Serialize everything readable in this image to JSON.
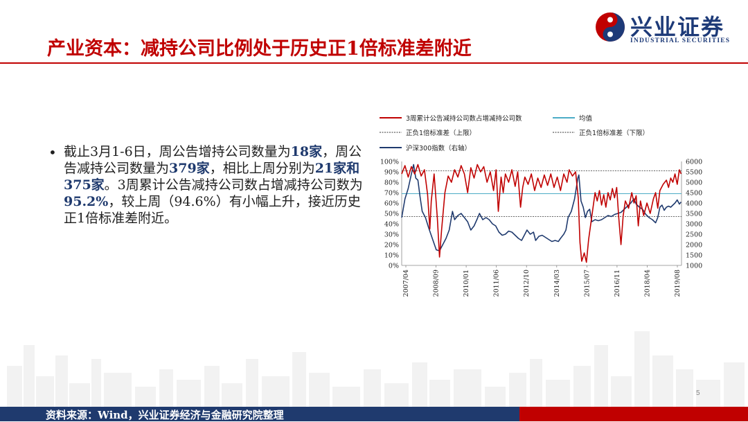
{
  "header": {
    "title": "产业资本：减持公司比例处于历史正1倍标准差附近",
    "logo_cn": "兴业证券",
    "logo_en": "INDUSTRIAL SECURITIES"
  },
  "bullet": {
    "segments": [
      {
        "text": "截止3月1-6日，周公告增持公司数量为",
        "bold": false
      },
      {
        "text": "18家",
        "bold": true
      },
      {
        "text": "，周公告减持公司数量为",
        "bold": false
      },
      {
        "text": "379家",
        "bold": true
      },
      {
        "text": "，相比上周分别为",
        "bold": false
      },
      {
        "text": "21家和375家",
        "bold": true
      },
      {
        "text": "。3周累计公告减持公司数占增减持公司数为",
        "bold": false
      },
      {
        "text": "95.2%",
        "bold": true
      },
      {
        "text": "，较上周（94.6%）有小幅上升，接近历史正1倍标准差附近。",
        "bold": false
      }
    ]
  },
  "footer": {
    "source": "资料来源：Wind，兴业证券经济与金融研究院整理",
    "page_number": "5"
  },
  "colors": {
    "brand_red": "#c00000",
    "brand_blue": "#1f3a6e",
    "series_red": "#c00000",
    "series_blue": "#1f3a6e",
    "mean_line": "#4bacc6",
    "std_lines": "#333333"
  },
  "chart_data": {
    "type": "line",
    "legend": [
      {
        "name": "3周累计公告减持公司数占增减持公司数",
        "style": "solid",
        "color": "#c00000"
      },
      {
        "name": "均值",
        "style": "solid",
        "color": "#4bacc6"
      },
      {
        "name": "正负1倍标准差（上限）",
        "style": "dashed",
        "color": "#333333"
      },
      {
        "name": "正负1倍标准差（下限）",
        "style": "dashed",
        "color": "#333333"
      },
      {
        "name": "沪深300指数（右轴）",
        "style": "solid",
        "color": "#1f3a6e"
      }
    ],
    "x_ticks": [
      "2007/04",
      "2008/09",
      "2010/01",
      "2011/06",
      "2012/10",
      "2014/03",
      "2015/07",
      "2016/11",
      "2018/04",
      "2019/08"
    ],
    "x_range": [
      2007.25,
      2020.2
    ],
    "left_axis": {
      "ticks": [
        "0%",
        "10%",
        "20%",
        "30%",
        "40%",
        "50%",
        "60%",
        "70%",
        "80%",
        "90%",
        "100%"
      ],
      "ylim": [
        0,
        100
      ]
    },
    "right_axis": {
      "ticks": [
        "1000",
        "1500",
        "2000",
        "2500",
        "3000",
        "3500",
        "4000",
        "4500",
        "5000",
        "5500",
        "6000"
      ],
      "ylim": [
        1000,
        6000
      ]
    },
    "mean": 69,
    "upper_std": 91,
    "lower_std": 47,
    "series": [
      {
        "name": "3周累计公告减持公司数占增减持公司数",
        "axis": "left",
        "points": [
          [
            2007.25,
            88
          ],
          [
            2007.4,
            96
          ],
          [
            2007.55,
            85
          ],
          [
            2007.7,
            95
          ],
          [
            2007.85,
            88
          ],
          [
            2008.0,
            97
          ],
          [
            2008.15,
            86
          ],
          [
            2008.3,
            92
          ],
          [
            2008.45,
            68
          ],
          [
            2008.55,
            35
          ],
          [
            2008.62,
            62
          ],
          [
            2008.75,
            88
          ],
          [
            2008.9,
            45
          ],
          [
            2009.0,
            8
          ],
          [
            2009.1,
            35
          ],
          [
            2009.25,
            70
          ],
          [
            2009.4,
            86
          ],
          [
            2009.55,
            80
          ],
          [
            2009.7,
            92
          ],
          [
            2009.85,
            85
          ],
          [
            2010.0,
            96
          ],
          [
            2010.15,
            88
          ],
          [
            2010.3,
            70
          ],
          [
            2010.45,
            94
          ],
          [
            2010.6,
            84
          ],
          [
            2010.75,
            97
          ],
          [
            2010.9,
            90
          ],
          [
            2011.05,
            95
          ],
          [
            2011.2,
            80
          ],
          [
            2011.35,
            90
          ],
          [
            2011.5,
            72
          ],
          [
            2011.62,
            92
          ],
          [
            2011.72,
            52
          ],
          [
            2011.85,
            85
          ],
          [
            2011.95,
            70
          ],
          [
            2012.05,
            88
          ],
          [
            2012.2,
            80
          ],
          [
            2012.35,
            92
          ],
          [
            2012.5,
            76
          ],
          [
            2012.62,
            90
          ],
          [
            2012.75,
            56
          ],
          [
            2012.85,
            75
          ],
          [
            2012.95,
            85
          ],
          [
            2013.1,
            78
          ],
          [
            2013.25,
            88
          ],
          [
            2013.4,
            72
          ],
          [
            2013.55,
            84
          ],
          [
            2013.7,
            75
          ],
          [
            2013.85,
            87
          ],
          [
            2014.0,
            77
          ],
          [
            2014.15,
            88
          ],
          [
            2014.3,
            75
          ],
          [
            2014.45,
            85
          ],
          [
            2014.6,
            72
          ],
          [
            2014.75,
            88
          ],
          [
            2014.9,
            80
          ],
          [
            2015.0,
            92
          ],
          [
            2015.15,
            86
          ],
          [
            2015.3,
            90
          ],
          [
            2015.42,
            65
          ],
          [
            2015.5,
            22
          ],
          [
            2015.58,
            4
          ],
          [
            2015.7,
            12
          ],
          [
            2015.8,
            3
          ],
          [
            2015.9,
            25
          ],
          [
            2016.0,
            40
          ],
          [
            2016.1,
            55
          ],
          [
            2016.2,
            70
          ],
          [
            2016.3,
            62
          ],
          [
            2016.4,
            72
          ],
          [
            2016.5,
            58
          ],
          [
            2016.6,
            68
          ],
          [
            2016.7,
            56
          ],
          [
            2016.8,
            70
          ],
          [
            2016.9,
            63
          ],
          [
            2017.0,
            74
          ],
          [
            2017.1,
            65
          ],
          [
            2017.2,
            75
          ],
          [
            2017.3,
            45
          ],
          [
            2017.4,
            20
          ],
          [
            2017.5,
            48
          ],
          [
            2017.6,
            62
          ],
          [
            2017.75,
            55
          ],
          [
            2017.9,
            70
          ],
          [
            2018.0,
            60
          ],
          [
            2018.1,
            67
          ],
          [
            2018.2,
            38
          ],
          [
            2018.3,
            62
          ],
          [
            2018.45,
            48
          ],
          [
            2018.6,
            60
          ],
          [
            2018.75,
            50
          ],
          [
            2018.9,
            64
          ],
          [
            2019.0,
            70
          ],
          [
            2019.1,
            55
          ],
          [
            2019.2,
            72
          ],
          [
            2019.35,
            78
          ],
          [
            2019.5,
            82
          ],
          [
            2019.6,
            75
          ],
          [
            2019.7,
            84
          ],
          [
            2019.8,
            80
          ],
          [
            2019.9,
            88
          ],
          [
            2020.0,
            78
          ],
          [
            2020.1,
            92
          ],
          [
            2020.18,
            88
          ]
        ]
      },
      {
        "name": "沪深300指数（右轴）",
        "axis": "right",
        "points": [
          [
            2007.25,
            3300
          ],
          [
            2007.4,
            4200
          ],
          [
            2007.55,
            4700
          ],
          [
            2007.7,
            5400
          ],
          [
            2007.8,
            5850
          ],
          [
            2007.9,
            5200
          ],
          [
            2008.0,
            5100
          ],
          [
            2008.1,
            4300
          ],
          [
            2008.2,
            3600
          ],
          [
            2008.35,
            3300
          ],
          [
            2008.5,
            2800
          ],
          [
            2008.6,
            2500
          ],
          [
            2008.7,
            2200
          ],
          [
            2008.85,
            1750
          ],
          [
            2009.0,
            1700
          ],
          [
            2009.15,
            2000
          ],
          [
            2009.3,
            2300
          ],
          [
            2009.45,
            2700
          ],
          [
            2009.6,
            3600
          ],
          [
            2009.7,
            3200
          ],
          [
            2009.85,
            3400
          ],
          [
            2010.0,
            3500
          ],
          [
            2010.15,
            3300
          ],
          [
            2010.3,
            3100
          ],
          [
            2010.45,
            2700
          ],
          [
            2010.6,
            2900
          ],
          [
            2010.75,
            3250
          ],
          [
            2010.85,
            3500
          ],
          [
            2011.0,
            3200
          ],
          [
            2011.15,
            3300
          ],
          [
            2011.3,
            3200
          ],
          [
            2011.45,
            3000
          ],
          [
            2011.6,
            2900
          ],
          [
            2011.75,
            2600
          ],
          [
            2011.9,
            2450
          ],
          [
            2012.05,
            2500
          ],
          [
            2012.2,
            2650
          ],
          [
            2012.35,
            2600
          ],
          [
            2012.5,
            2450
          ],
          [
            2012.65,
            2300
          ],
          [
            2012.8,
            2200
          ],
          [
            2012.95,
            2500
          ],
          [
            2013.05,
            2700
          ],
          [
            2013.2,
            2500
          ],
          [
            2013.35,
            2600
          ],
          [
            2013.45,
            2200
          ],
          [
            2013.6,
            2400
          ],
          [
            2013.75,
            2450
          ],
          [
            2013.9,
            2350
          ],
          [
            2014.05,
            2250
          ],
          [
            2014.2,
            2150
          ],
          [
            2014.35,
            2200
          ],
          [
            2014.5,
            2150
          ],
          [
            2014.6,
            2300
          ],
          [
            2014.75,
            2500
          ],
          [
            2014.85,
            2700
          ],
          [
            2014.95,
            3300
          ],
          [
            2015.1,
            3600
          ],
          [
            2015.25,
            4200
          ],
          [
            2015.4,
            5200
          ],
          [
            2015.45,
            5350
          ],
          [
            2015.55,
            4100
          ],
          [
            2015.65,
            3800
          ],
          [
            2015.75,
            3300
          ],
          [
            2015.85,
            3600
          ],
          [
            2015.95,
            3700
          ],
          [
            2016.05,
            3100
          ],
          [
            2016.2,
            3200
          ],
          [
            2016.35,
            3150
          ],
          [
            2016.5,
            3200
          ],
          [
            2016.65,
            3300
          ],
          [
            2016.8,
            3400
          ],
          [
            2016.95,
            3350
          ],
          [
            2017.1,
            3450
          ],
          [
            2017.25,
            3500
          ],
          [
            2017.4,
            3550
          ],
          [
            2017.55,
            3700
          ],
          [
            2017.7,
            3850
          ],
          [
            2017.85,
            4000
          ],
          [
            2018.0,
            4200
          ],
          [
            2018.1,
            3950
          ],
          [
            2018.25,
            3800
          ],
          [
            2018.4,
            3700
          ],
          [
            2018.55,
            3450
          ],
          [
            2018.7,
            3300
          ],
          [
            2018.85,
            3200
          ],
          [
            2019.0,
            3050
          ],
          [
            2019.1,
            3300
          ],
          [
            2019.2,
            3800
          ],
          [
            2019.3,
            3900
          ],
          [
            2019.4,
            3650
          ],
          [
            2019.5,
            3800
          ],
          [
            2019.6,
            3850
          ],
          [
            2019.7,
            3800
          ],
          [
            2019.8,
            3900
          ],
          [
            2019.9,
            4000
          ],
          [
            2020.0,
            4150
          ],
          [
            2020.1,
            3950
          ],
          [
            2020.18,
            4050
          ]
        ]
      }
    ]
  }
}
